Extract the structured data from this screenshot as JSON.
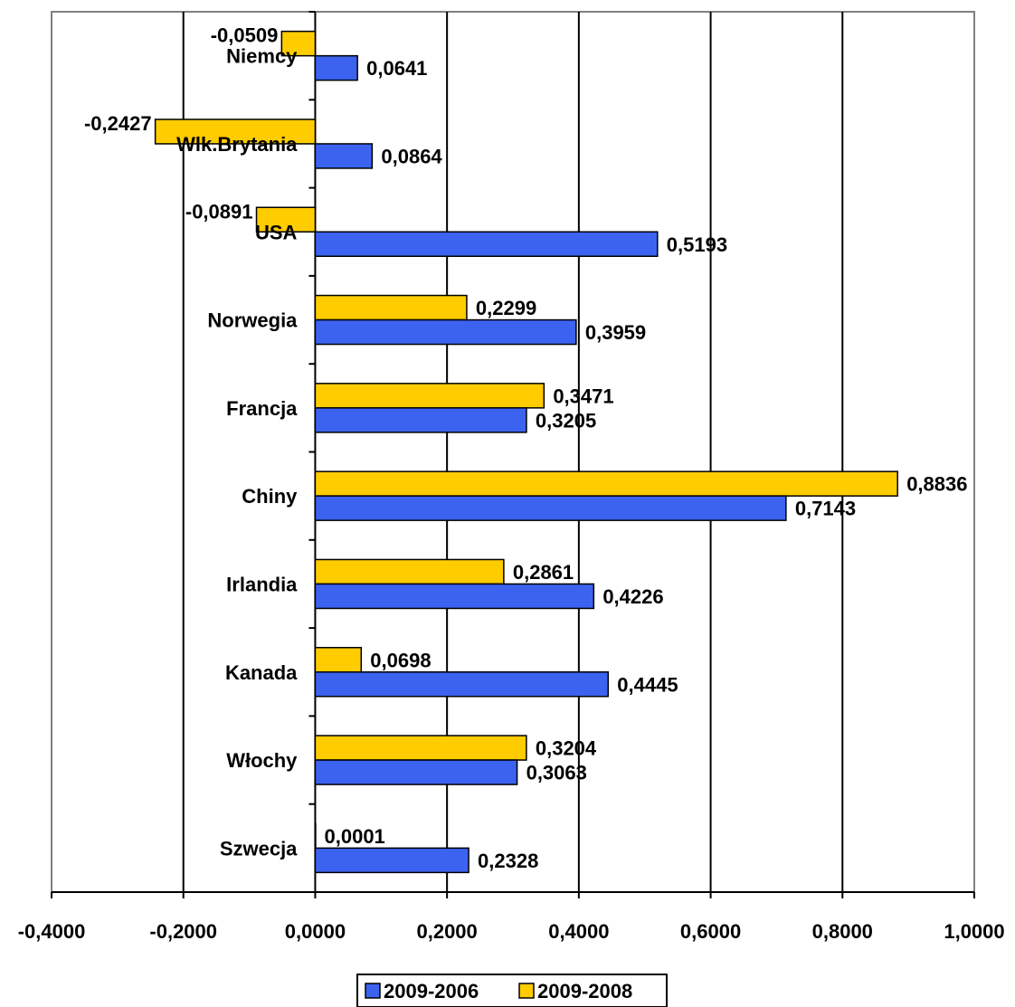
{
  "chart_data": {
    "type": "bar",
    "orientation": "horizontal",
    "categories": [
      "Niemcy",
      "Wlk.Brytania",
      "USA",
      "Norwegia",
      "Francja",
      "Chiny",
      "Irlandia",
      "Kanada",
      "Włochy",
      "Szwecja"
    ],
    "series": [
      {
        "name": "2009-2006",
        "color": "#3C63F0",
        "values": [
          0.0641,
          0.0864,
          0.5193,
          0.3959,
          0.3205,
          0.7143,
          0.4226,
          0.4445,
          0.3063,
          0.2328
        ],
        "labels": [
          "0,0641",
          "0,0864",
          "0,5193",
          "0,3959",
          "0,3205",
          "0,7143",
          "0,4226",
          "0,4445",
          "0,3063",
          "0,2328"
        ]
      },
      {
        "name": "2009-2008",
        "color": "#FFCC00",
        "values": [
          -0.0509,
          -0.2427,
          -0.0891,
          0.2299,
          0.3471,
          0.8836,
          0.2861,
          0.0698,
          0.3204,
          0.0001
        ],
        "labels": [
          "-0,0509",
          "-0,2427",
          "-0,0891",
          "0,2299",
          "0,3471",
          "0,8836",
          "0,2861",
          "0,0698",
          "0,3204",
          "0,0001"
        ]
      }
    ],
    "xlim": [
      -0.4,
      1.0
    ],
    "x_ticks": [
      -0.4,
      -0.2,
      0.0,
      0.2,
      0.4,
      0.6,
      0.8,
      1.0
    ],
    "x_tick_labels": [
      "-0,4000",
      "-0,2000",
      "0,0000",
      "0,2000",
      "0,4000",
      "0,6000",
      "0,8000",
      "1,0000"
    ],
    "grid": "vertical",
    "legend_position": "bottom-center"
  }
}
